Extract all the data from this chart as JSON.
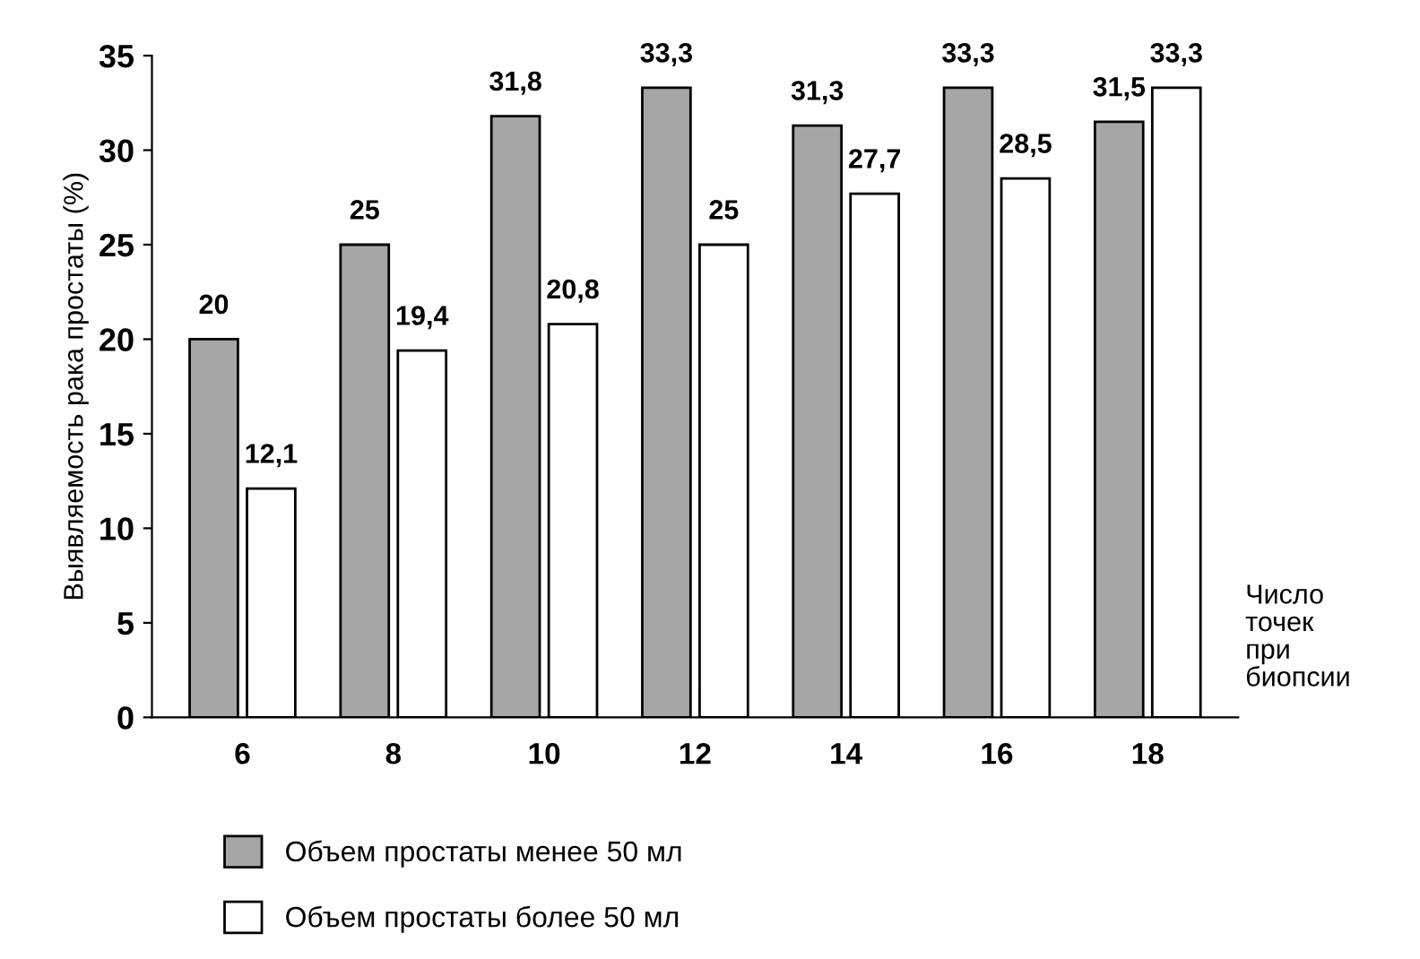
{
  "chart_data": {
    "type": "bar",
    "categories": [
      "6",
      "8",
      "10",
      "12",
      "14",
      "16",
      "18"
    ],
    "series": [
      {
        "name": "Объем простаты менее 50 мл",
        "color": "#a6a6a6",
        "values": [
          20,
          25,
          31.8,
          33.3,
          31.3,
          33.3,
          31.5
        ],
        "value_labels": [
          "20",
          "25",
          "31,8",
          "33,3",
          "31,3",
          "33,3",
          "31,5"
        ]
      },
      {
        "name": "Объем простаты более 50 мл",
        "color": "#ffffff",
        "values": [
          12.1,
          19.4,
          20.8,
          25,
          27.7,
          28.5,
          33.3
        ],
        "value_labels": [
          "12,1",
          "19,4",
          "20,8",
          "25",
          "27,7",
          "28,5",
          "33,3"
        ]
      }
    ],
    "ylabel": "Выявляемость рака простаты (%)",
    "xlabel": "Число\nточек\nпри\nбиопсии",
    "ylim": [
      0,
      35
    ],
    "yticks": [
      0,
      5,
      10,
      15,
      20,
      25,
      30,
      35
    ],
    "grid": false,
    "legend": "bottom"
  }
}
